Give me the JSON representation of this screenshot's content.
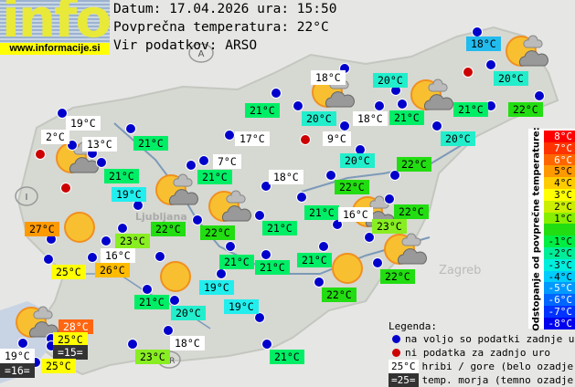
{
  "logo": {
    "word": "info",
    "url": "www.informacije.si"
  },
  "header": {
    "date_line": "Datum: 17.04.2026 ura: 15:50",
    "avg_temp_line": "Povprečna temperatura: 22°C",
    "source_line": "Vir podatkov: ARSO"
  },
  "colors": {
    "white": "#ffffff",
    "dark": "#333333",
    "18": "#22bbee",
    "19": "#22eeee",
    "20": "#22eecc",
    "21": "#00ee66",
    "22": "#22dd11",
    "23": "#88ee22",
    "25": "#ffff00",
    "26": "#ffbb00",
    "27": "#ff9900",
    "28": "#ff6611",
    "dot_ok": "#0000cc",
    "dot_missing": "#cc0000"
  },
  "stations": [
    {
      "t": "18°C",
      "c": "18"
    },
    {
      "t": "18°C",
      "c": "white"
    },
    {
      "t": "20°C",
      "c": "20"
    },
    {
      "t": "20°C",
      "c": "20"
    },
    {
      "t": "21°C",
      "c": "21"
    },
    {
      "t": "20°C",
      "c": "20"
    },
    {
      "t": "18°C",
      "c": "white"
    },
    {
      "t": "21°C",
      "c": "21"
    },
    {
      "t": "21°C",
      "c": "21"
    },
    {
      "t": "22°C",
      "c": "22"
    },
    {
      "t": "19°C",
      "c": "white"
    },
    {
      "t": "2°C",
      "c": "white"
    },
    {
      "t": "13°C",
      "c": "white"
    },
    {
      "t": "21°C",
      "c": "21"
    },
    {
      "t": "17°C",
      "c": "white"
    },
    {
      "t": "9°C",
      "c": "white"
    },
    {
      "t": "20°C",
      "c": "20"
    },
    {
      "t": "20°C",
      "c": "20"
    },
    {
      "t": "7°C",
      "c": "white"
    },
    {
      "t": "21°C",
      "c": "21"
    },
    {
      "t": "21°C",
      "c": "21"
    },
    {
      "t": "22°C",
      "c": "22"
    },
    {
      "t": "18°C",
      "c": "white"
    },
    {
      "t": "22°C",
      "c": "22"
    },
    {
      "t": "19°C",
      "c": "19"
    },
    {
      "t": "21°C",
      "c": "21"
    },
    {
      "t": "16°C",
      "c": "white"
    },
    {
      "t": "22°C",
      "c": "22"
    },
    {
      "t": "23°C",
      "c": "23"
    },
    {
      "t": "27°C",
      "c": "27"
    },
    {
      "t": "22°C",
      "c": "22"
    },
    {
      "t": "22°C",
      "c": "22"
    },
    {
      "t": "21°C",
      "c": "21"
    },
    {
      "t": "23°C",
      "c": "23"
    },
    {
      "t": "16°C",
      "c": "white"
    },
    {
      "t": "21°C",
      "c": "21"
    },
    {
      "t": "21°C",
      "c": "21"
    },
    {
      "t": "21°C",
      "c": "21"
    },
    {
      "t": "25°C",
      "c": "25"
    },
    {
      "t": "26°C",
      "c": "26"
    },
    {
      "t": "22°C",
      "c": "22"
    },
    {
      "t": "19°C",
      "c": "19"
    },
    {
      "t": "22°C",
      "c": "22"
    },
    {
      "t": "21°C",
      "c": "21"
    },
    {
      "t": "20°C",
      "c": "20"
    },
    {
      "t": "19°C",
      "c": "19"
    },
    {
      "t": "28°C",
      "c": "28"
    },
    {
      "t": "25°C",
      "c": "25"
    },
    {
      "t": "=15=",
      "c": "dark"
    },
    {
      "t": "18°C",
      "c": "white"
    },
    {
      "t": "19°C",
      "c": "white"
    },
    {
      "t": "=16=",
      "c": "dark"
    },
    {
      "t": "25°C",
      "c": "25"
    },
    {
      "t": "23°C",
      "c": "23"
    },
    {
      "t": "21°C",
      "c": "21"
    }
  ],
  "weather_icons": [
    "partly-cloudy",
    "partly-cloudy",
    "partly-cloudy",
    "partly-cloudy",
    "partly-cloudy",
    "partly-cloudy",
    "sunny",
    "sunny",
    "sunny",
    "partly-cloudy",
    "partly-cloudy",
    "partly-cloudy"
  ],
  "map_labels": {
    "austria": "A",
    "italy": "I",
    "croatia": "HR",
    "ljubljana": "Ljubljana",
    "zagreb": "Zagreb"
  },
  "scale": {
    "title": "Odstopanje od povprečne temperature:",
    "rows": [
      {
        "label": "8°C",
        "color": "#ff0000",
        "fg": "#ffffff"
      },
      {
        "label": "7°C",
        "color": "#ff3300",
        "fg": "#ffffff"
      },
      {
        "label": "6°C",
        "color": "#ff6600",
        "fg": "#ffffff"
      },
      {
        "label": "5°C",
        "color": "#ff9900",
        "fg": "#000000"
      },
      {
        "label": "4°C",
        "color": "#ffcc00",
        "fg": "#000000"
      },
      {
        "label": "3°C",
        "color": "#ffff00",
        "fg": "#000000"
      },
      {
        "label": "2°C",
        "color": "#ccee00",
        "fg": "#000000"
      },
      {
        "label": "1°C",
        "color": "#88ee00",
        "fg": "#000000"
      },
      {
        "label": "",
        "color": "#22dd11",
        "fg": "#000000"
      },
      {
        "label": "-1°C",
        "color": "#00ee44",
        "fg": "#000000"
      },
      {
        "label": "-2°C",
        "color": "#00ee99",
        "fg": "#000000"
      },
      {
        "label": "-3°C",
        "color": "#00eedd",
        "fg": "#000000"
      },
      {
        "label": "-4°C",
        "color": "#00ccff",
        "fg": "#000000"
      },
      {
        "label": "-5°C",
        "color": "#0099ff",
        "fg": "#ffffff"
      },
      {
        "label": "-6°C",
        "color": "#0066ff",
        "fg": "#ffffff"
      },
      {
        "label": "-7°C",
        "color": "#0033ff",
        "fg": "#ffffff"
      },
      {
        "label": "-8°C",
        "color": "#0000ee",
        "fg": "#ffffff"
      }
    ]
  },
  "legend": {
    "title": "Legenda:",
    "ok": "na voljo so podatki zadnje ure",
    "missing": "ni podatka za zadnjo uro",
    "hill_sample": "25°C",
    "hill_text": "hribi / gore (belo ozadje)",
    "sea_sample": "=25=",
    "sea_text": "temp. morja (temno ozadje)"
  }
}
